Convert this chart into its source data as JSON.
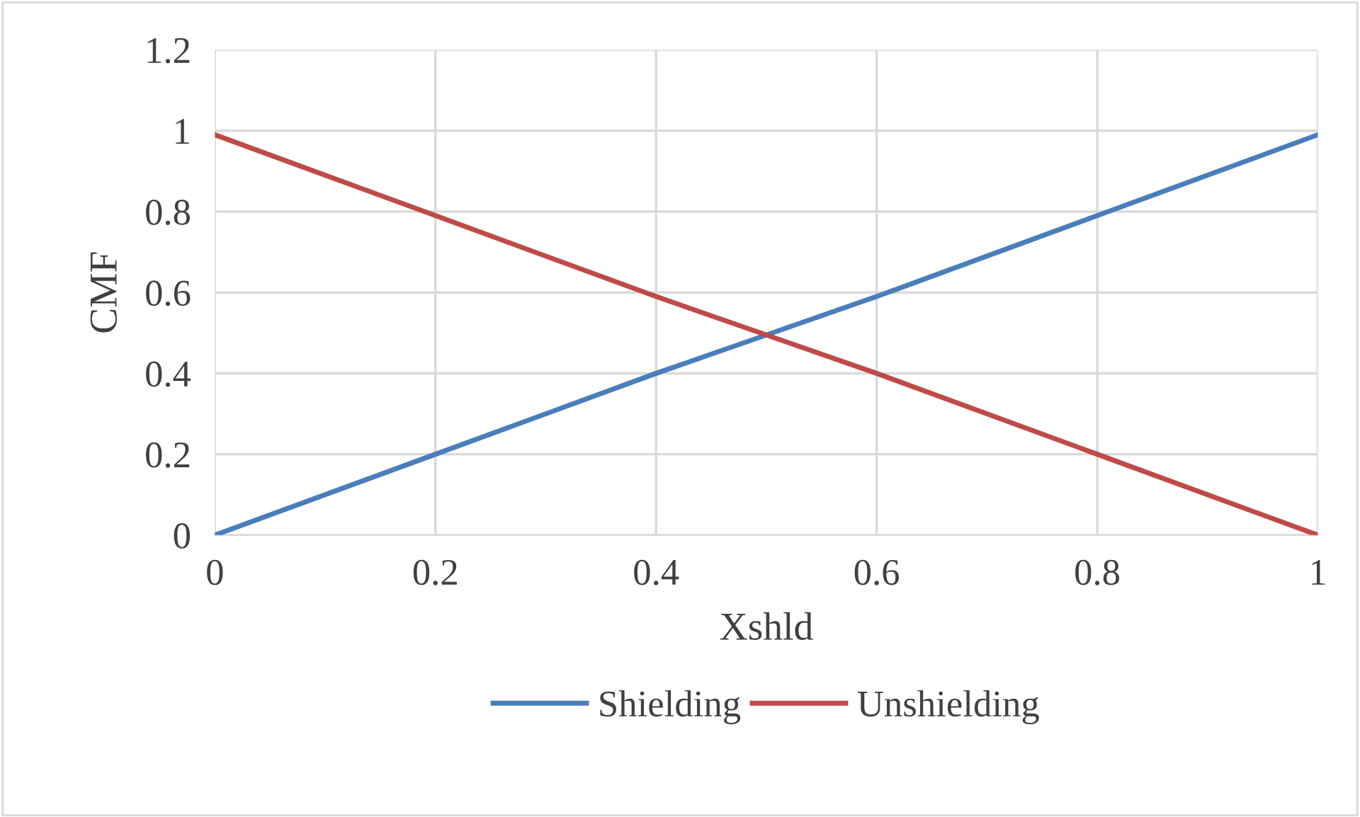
{
  "chart_data": {
    "type": "line",
    "xlabel": "Xshld",
    "ylabel": "CMF",
    "series": [
      {
        "name": "Shielding",
        "color": "#4a7ebb",
        "x": [
          0,
          0.2,
          0.4,
          0.6,
          0.8,
          1
        ],
        "values": [
          0,
          0.2,
          0.4,
          0.59,
          0.79,
          0.99
        ]
      },
      {
        "name": "Unshielding",
        "color": "#be4b48",
        "x": [
          0,
          0.2,
          0.4,
          0.6,
          0.8,
          1
        ],
        "values": [
          0.99,
          0.79,
          0.59,
          0.4,
          0.2,
          0
        ]
      }
    ],
    "xlim": [
      0,
      1
    ],
    "xticks": [
      0,
      0.2,
      0.4,
      0.6,
      0.8,
      1
    ],
    "ylim": [
      0,
      1.2
    ],
    "yticks": [
      0,
      0.2,
      0.4,
      0.6,
      0.8,
      1,
      1.2
    ],
    "grid": true,
    "legend": "bottom",
    "marker": "none",
    "line_style": "solid"
  }
}
